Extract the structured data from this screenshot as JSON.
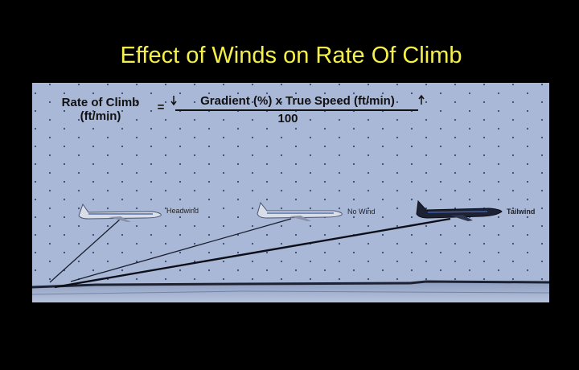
{
  "header": {
    "title": "Effect of Winds on Rate Of Climb"
  },
  "formula": {
    "lhs": [
      "Rate of Climb",
      "(ft/min)"
    ],
    "equals": "=",
    "numerator": "Gradient (%) x True Speed (ft/min)",
    "denominator": "100"
  },
  "aircraft": [
    {
      "label": "Headwind"
    },
    {
      "label": "No Wind"
    },
    {
      "label": "Tailwind"
    }
  ]
}
